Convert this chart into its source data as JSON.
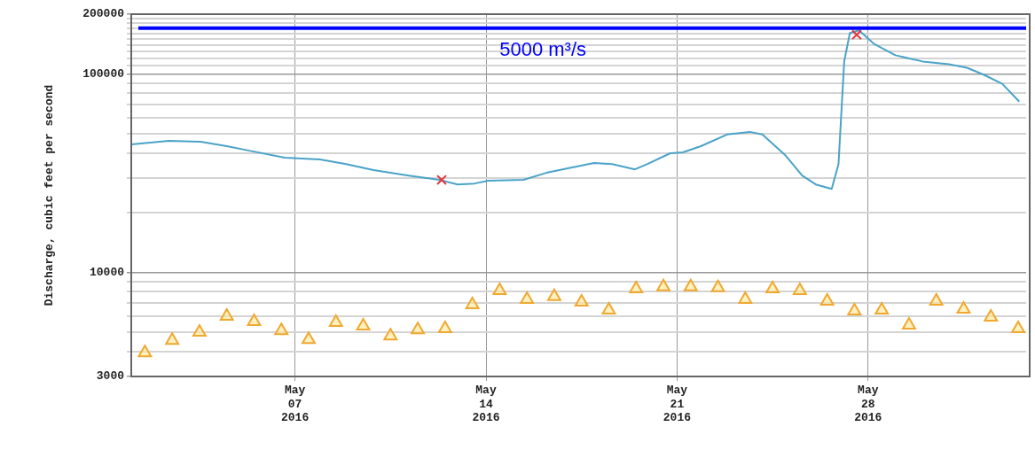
{
  "chart_data": {
    "type": "line",
    "ylabel": "Discharge, cubic feet per second",
    "log": "y",
    "grid": true,
    "legend": false,
    "xlim": [
      "2016-05-01",
      "2016-06-02T19:00"
    ],
    "xticks": [
      {
        "value": "2016-05-07",
        "label": "May\n07\n2016"
      },
      {
        "value": "2016-05-14",
        "label": "May\n14\n2016"
      },
      {
        "value": "2016-05-21",
        "label": "May\n21\n2016"
      },
      {
        "value": "2016-05-28",
        "label": "May\n28\n2016"
      }
    ],
    "ylim": [
      3000,
      200000
    ],
    "yticks": [
      3000,
      {
        "value": 4000,
        "label": null
      },
      {
        "value": 5000,
        "label": null
      },
      {
        "value": 6000,
        "label": null
      },
      {
        "value": 7000,
        "label": null
      },
      {
        "value": 8000,
        "label": null
      },
      {
        "value": 9000,
        "label": null
      },
      10000,
      {
        "value": 20000,
        "label": null
      },
      {
        "value": 30000,
        "label": null
      },
      {
        "value": 40000,
        "label": null
      },
      {
        "value": 50000,
        "label": null
      },
      {
        "value": 60000,
        "label": null
      },
      {
        "value": 70000,
        "label": null
      },
      {
        "value": 80000,
        "label": null
      },
      {
        "value": 90000,
        "label": null
      },
      100000,
      {
        "value": 110000,
        "label": null
      },
      {
        "value": 120000,
        "label": null
      },
      {
        "value": 130000,
        "label": null
      },
      {
        "value": 140000,
        "label": null
      },
      {
        "value": 150000,
        "label": null
      },
      {
        "value": 160000,
        "label": null
      },
      {
        "value": 170000,
        "label": null
      },
      {
        "value": 180000,
        "label": null
      },
      {
        "value": 190000,
        "label": null
      },
      200000
    ],
    "ref_lines": [
      {
        "axis": "y",
        "value": 170000,
        "label": "5000 m³/s",
        "color": "#0000ff",
        "line_style": "solid"
      }
    ],
    "series": [
      {
        "type": "line",
        "color": "#4aa3c8",
        "marker": "none",
        "line_style": "solid",
        "x": [
          "2016-05-01",
          "2016-05-02T09:00",
          "2016-05-03T13:00",
          "2016-05-04T12:00",
          "2016-05-05T07:00",
          "2016-05-06T15:00",
          "2016-05-07T22:00",
          "2016-05-08T21:00",
          "2016-05-09T21:00",
          "2016-05-11T04:00",
          "2016-05-12T07:00",
          "2016-05-12T23:00",
          "2016-05-13T14:00",
          "2016-05-14T02:00",
          "2016-05-15T09:00",
          "2016-05-16T05:00",
          "2016-05-17",
          "2016-05-17T23:00",
          "2016-05-18T15:00",
          "2016-05-19T11:00",
          "2016-05-19T22:00",
          "2016-05-20T18:00",
          "2016-05-21T05:00",
          "2016-05-21T21:00",
          "2016-05-22T20:00",
          "2016-05-23T16:00",
          "2016-05-24T03:00",
          "2016-05-24T23:00",
          "2016-05-25T14:00",
          "2016-05-26T02:00",
          "2016-05-26T16:00",
          "2016-05-26T22:00",
          "2016-05-27T03:00",
          "2016-05-27T08:00",
          "2016-05-27T16:00",
          "2016-05-28T05:00",
          "2016-05-29",
          "2016-05-30",
          "2016-05-30T23:00",
          "2016-05-31T15:00",
          "2016-06-01T06:00",
          "2016-06-01T22:00",
          "2016-06-02T13:00"
        ],
        "values": [
          44200,
          46100,
          45600,
          43300,
          41200,
          37900,
          37100,
          35200,
          32800,
          30800,
          29300,
          27800,
          28100,
          29000,
          29300,
          31800,
          33500,
          35600,
          35200,
          33100,
          35200,
          39900,
          40300,
          43300,
          49600,
          51100,
          49600,
          39100,
          30800,
          27800,
          26400,
          35200,
          115600,
          160800,
          165900,
          142100,
          124200,
          115600,
          112000,
          107500,
          99000,
          89200,
          72600
        ]
      },
      {
        "type": "scatter",
        "color": "#e8303a",
        "marker": "cross",
        "x": [
          "2016-05-12T09:00",
          "2016-05-27T14:00"
        ],
        "values": [
          29300,
          157600
        ]
      },
      {
        "type": "scatter",
        "color": "#f0a830",
        "marker": "triangle",
        "x": [
          "2016-05-01T12:00",
          "2016-05-02T12:00",
          "2016-05-03T12:00",
          "2016-05-04T12:00",
          "2016-05-05T12:00",
          "2016-05-06T12:00",
          "2016-05-07T12:00",
          "2016-05-08T12:00",
          "2016-05-09T12:00",
          "2016-05-10T12:00",
          "2016-05-11T12:00",
          "2016-05-12T12:00",
          "2016-05-13T12:00",
          "2016-05-14T12:00",
          "2016-05-15T12:00",
          "2016-05-16T12:00",
          "2016-05-17T12:00",
          "2016-05-18T12:00",
          "2016-05-19T12:00",
          "2016-05-20T12:00",
          "2016-05-21T12:00",
          "2016-05-22T12:00",
          "2016-05-23T12:00",
          "2016-05-24T12:00",
          "2016-05-25T12:00",
          "2016-05-26T12:00",
          "2016-05-27T12:00",
          "2016-05-28T12:00",
          "2016-05-29T12:00",
          "2016-05-30T12:00",
          "2016-05-31T12:00",
          "2016-06-01T12:00",
          "2016-06-02T12:00"
        ],
        "values": [
          3950,
          4560,
          5010,
          6030,
          5670,
          5110,
          4610,
          5610,
          5380,
          4800,
          5160,
          5220,
          6900,
          8130,
          7330,
          7570,
          7110,
          6480,
          8300,
          8480,
          8480,
          8390,
          7330,
          8300,
          8130,
          7190,
          6410,
          6480,
          5440,
          7190,
          6550,
          5970,
          5220
        ]
      }
    ]
  }
}
